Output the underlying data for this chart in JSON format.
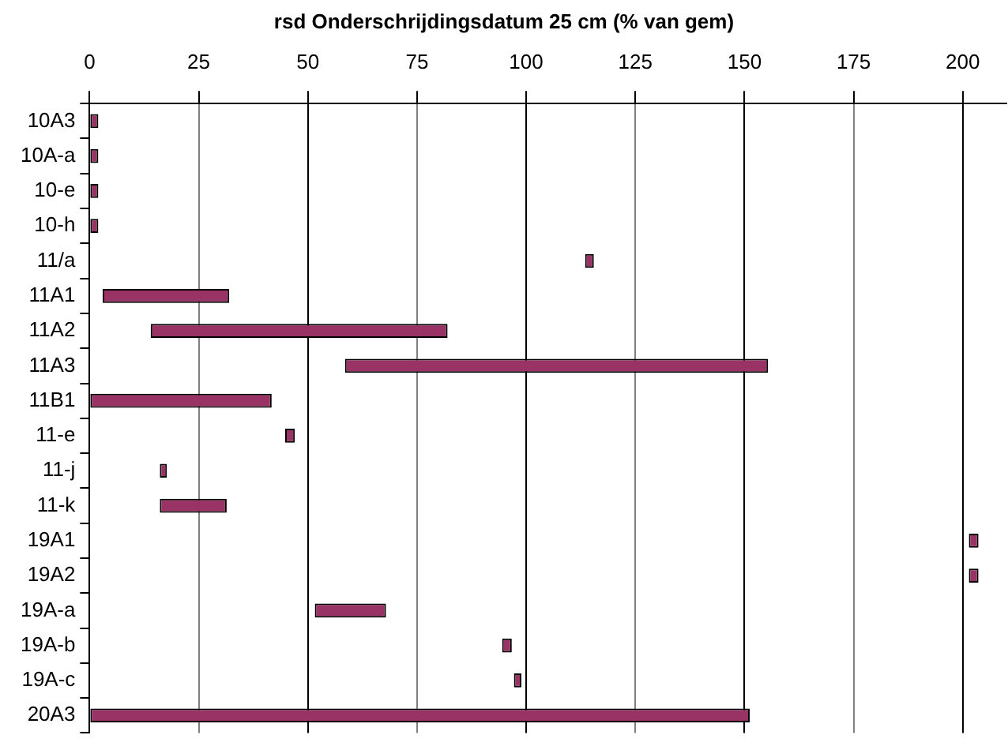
{
  "chart_data": {
    "type": "bar",
    "orientation": "horizontal",
    "title": "rsd Onderschrijdingsdatum 25 cm (% van gem)",
    "categories": [
      "10A3",
      "10A-a",
      "10-e",
      "10-h",
      "11/a",
      "11A1",
      "11A2",
      "11A3",
      "11B1",
      "11-e",
      "11-j",
      "11-k",
      "19A1",
      "19A2",
      "19A-a",
      "19A-b",
      "19A-c",
      "20A3"
    ],
    "base": [
      0,
      0,
      0,
      0,
      113.5,
      3,
      14,
      58.5,
      0,
      44.8,
      16.1,
      16.1,
      201.4,
      201.4,
      51.6,
      94.5,
      97.2,
      0
    ],
    "values": [
      2,
      2,
      2,
      2,
      2,
      29,
      68,
      96.9,
      41.7,
      2.2,
      1.6,
      15.3,
      2.2,
      2.2,
      16.3,
      2.2,
      1.7,
      151.2
    ],
    "color": "#993366",
    "xlim": [
      0,
      210
    ],
    "xticks": [
      0,
      25,
      50,
      75,
      100,
      125,
      150,
      175,
      200
    ],
    "grid": "x",
    "legend": false
  }
}
